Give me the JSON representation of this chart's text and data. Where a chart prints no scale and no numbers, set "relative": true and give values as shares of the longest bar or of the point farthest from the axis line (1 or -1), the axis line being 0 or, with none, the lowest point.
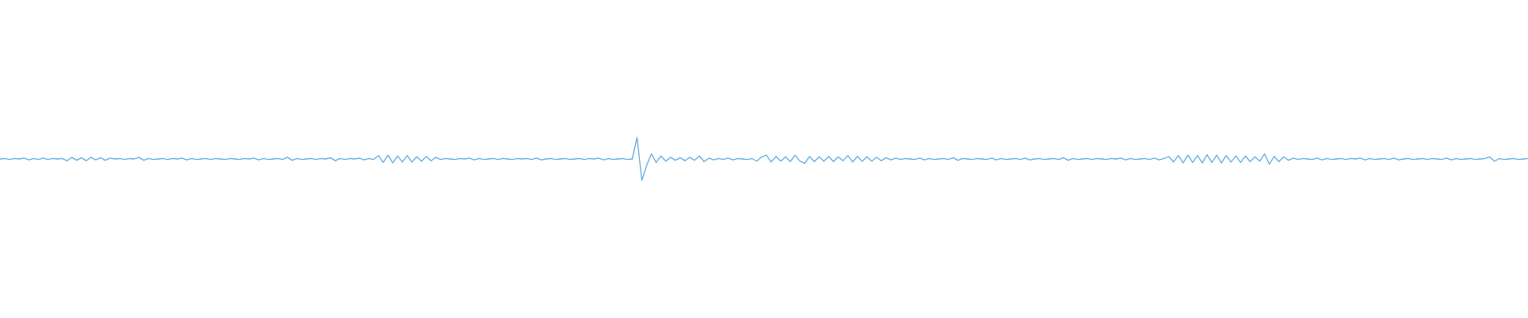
{
  "chart_data": {
    "type": "line",
    "relative": true,
    "color": "#5dade2",
    "categories": [
      null,
      null,
      null,
      null,
      null,
      null,
      null,
      null,
      null,
      null,
      null,
      null,
      null,
      null,
      null,
      null,
      null,
      null,
      null,
      null,
      null,
      null,
      null,
      null,
      null,
      null,
      null,
      null,
      null,
      null,
      null,
      null,
      null,
      null,
      null,
      null,
      null,
      null,
      null,
      null,
      null,
      null,
      null,
      null,
      null,
      null,
      null,
      null,
      null,
      null,
      null,
      null,
      null,
      null,
      null,
      null,
      null,
      null,
      null,
      null,
      null,
      null,
      null,
      null,
      null,
      null,
      null,
      null,
      null,
      null,
      null,
      null,
      null,
      null,
      null,
      null,
      null,
      null,
      null,
      null,
      null,
      null,
      null,
      null,
      null,
      null,
      null,
      null,
      null,
      null,
      null,
      null,
      null,
      null,
      null,
      null,
      null,
      null,
      null,
      null,
      null,
      null,
      null,
      null,
      null,
      null,
      null,
      null,
      null,
      null,
      null,
      null,
      null,
      null,
      null,
      null,
      null,
      null,
      null,
      null,
      null,
      null,
      null,
      null,
      null,
      null,
      null,
      null,
      null,
      null,
      null,
      null,
      null,
      null,
      null,
      null,
      null,
      null,
      null,
      null,
      null,
      null,
      null,
      null,
      null,
      null,
      null,
      null,
      null,
      null,
      null,
      null,
      null,
      null,
      null,
      null,
      null,
      null,
      null,
      null,
      null,
      null,
      null,
      null,
      null,
      null,
      null,
      null,
      null,
      null,
      null,
      null,
      null,
      null,
      null,
      null,
      null,
      null,
      null,
      null,
      null,
      null,
      null,
      null,
      null,
      null,
      null,
      null,
      null,
      null,
      null,
      null,
      null,
      null,
      null,
      null,
      null,
      null,
      null,
      null,
      null,
      null,
      null,
      null,
      null,
      null,
      null,
      null,
      null,
      null,
      null,
      null,
      null,
      null,
      null,
      null,
      null,
      null,
      null,
      null,
      null,
      null,
      null,
      null,
      null,
      null,
      null,
      null,
      null,
      null,
      null,
      null,
      null,
      null,
      null,
      null,
      null,
      null,
      null,
      null,
      null,
      null,
      null,
      null,
      null,
      null,
      null,
      null,
      null,
      null,
      null,
      null,
      null,
      null,
      null,
      null,
      null,
      null,
      null,
      null,
      null,
      null,
      null,
      null,
      null,
      null,
      null,
      null,
      null,
      null,
      null,
      null,
      null,
      null,
      null,
      null,
      null,
      null,
      null,
      null,
      null,
      null,
      null,
      null,
      null,
      null,
      null,
      null,
      null,
      null,
      null,
      null,
      null,
      null,
      null,
      null,
      null,
      null,
      null,
      null,
      null,
      null,
      null,
      null,
      null,
      null,
      null,
      null,
      null,
      null,
      null,
      null,
      null,
      null,
      null,
      null,
      null,
      null,
      null,
      null
    ],
    "values": [
      0.5,
      0.51,
      0.49,
      0.51,
      0.5,
      0.52,
      0.48,
      0.51,
      0.49,
      0.52,
      0.49,
      0.51,
      0.5,
      0.51,
      0.46,
      0.54,
      0.47,
      0.53,
      0.46,
      0.54,
      0.48,
      0.53,
      0.47,
      0.52,
      0.5,
      0.51,
      0.49,
      0.51,
      0.5,
      0.54,
      0.47,
      0.51,
      0.49,
      0.5,
      0.51,
      0.49,
      0.51,
      0.5,
      0.52,
      0.48,
      0.51,
      0.49,
      0.5,
      0.51,
      0.49,
      0.51,
      0.5,
      0.49,
      0.51,
      0.5,
      0.49,
      0.51,
      0.5,
      0.52,
      0.48,
      0.51,
      0.49,
      0.5,
      0.51,
      0.49,
      0.54,
      0.47,
      0.51,
      0.49,
      0.5,
      0.51,
      0.49,
      0.51,
      0.5,
      0.53,
      0.46,
      0.51,
      0.49,
      0.51,
      0.5,
      0.52,
      0.48,
      0.51,
      0.49,
      0.58,
      0.42,
      0.59,
      0.41,
      0.57,
      0.43,
      0.58,
      0.43,
      0.55,
      0.45,
      0.56,
      0.46,
      0.54,
      0.49,
      0.51,
      0.5,
      0.49,
      0.51,
      0.5,
      0.52,
      0.48,
      0.51,
      0.49,
      0.5,
      0.51,
      0.49,
      0.51,
      0.5,
      0.49,
      0.51,
      0.5,
      0.51,
      0.49,
      0.52,
      0.48,
      0.5,
      0.51,
      0.49,
      0.5,
      0.51,
      0.49,
      0.5,
      0.51,
      0.49,
      0.51,
      0.5,
      0.52,
      0.48,
      0.51,
      0.49,
      0.5,
      0.51,
      0.49,
      0.5,
      1.0,
      0.0,
      0.35,
      0.62,
      0.42,
      0.57,
      0.45,
      0.54,
      0.47,
      0.53,
      0.46,
      0.54,
      0.47,
      0.57,
      0.44,
      0.52,
      0.48,
      0.51,
      0.49,
      0.52,
      0.48,
      0.51,
      0.5,
      0.49,
      0.51,
      0.45,
      0.55,
      0.59,
      0.43,
      0.56,
      0.45,
      0.55,
      0.44,
      0.59,
      0.45,
      0.4,
      0.56,
      0.44,
      0.55,
      0.45,
      0.56,
      0.44,
      0.55,
      0.46,
      0.58,
      0.43,
      0.56,
      0.45,
      0.55,
      0.45,
      0.54,
      0.46,
      0.53,
      0.48,
      0.52,
      0.49,
      0.51,
      0.5,
      0.49,
      0.52,
      0.48,
      0.51,
      0.49,
      0.5,
      0.51,
      0.49,
      0.53,
      0.47,
      0.51,
      0.5,
      0.49,
      0.51,
      0.5,
      0.49,
      0.52,
      0.48,
      0.51,
      0.49,
      0.5,
      0.51,
      0.49,
      0.52,
      0.48,
      0.5,
      0.51,
      0.49,
      0.5,
      0.51,
      0.49,
      0.53,
      0.47,
      0.51,
      0.49,
      0.5,
      0.51,
      0.49,
      0.51,
      0.5,
      0.49,
      0.51,
      0.5,
      0.52,
      0.48,
      0.51,
      0.49,
      0.5,
      0.51,
      0.49,
      0.52,
      0.48,
      0.51,
      0.56,
      0.43,
      0.58,
      0.41,
      0.59,
      0.42,
      0.58,
      0.41,
      0.6,
      0.42,
      0.59,
      0.41,
      0.58,
      0.43,
      0.57,
      0.42,
      0.57,
      0.44,
      0.55,
      0.45,
      0.62,
      0.38,
      0.56,
      0.44,
      0.55,
      0.47,
      0.52,
      0.49,
      0.51,
      0.5,
      0.49,
      0.52,
      0.48,
      0.51,
      0.49,
      0.5,
      0.51,
      0.49,
      0.51,
      0.5,
      0.52,
      0.48,
      0.51,
      0.49,
      0.5,
      0.51,
      0.49,
      0.52,
      0.48,
      0.5,
      0.51,
      0.49,
      0.5,
      0.51,
      0.49,
      0.51,
      0.5,
      0.49,
      0.52,
      0.48,
      0.51,
      0.49,
      0.5,
      0.51,
      0.49,
      0.5,
      0.51,
      0.55,
      0.45,
      0.51,
      0.49,
      0.5,
      0.51,
      0.49,
      0.5,
      0.51
    ]
  }
}
